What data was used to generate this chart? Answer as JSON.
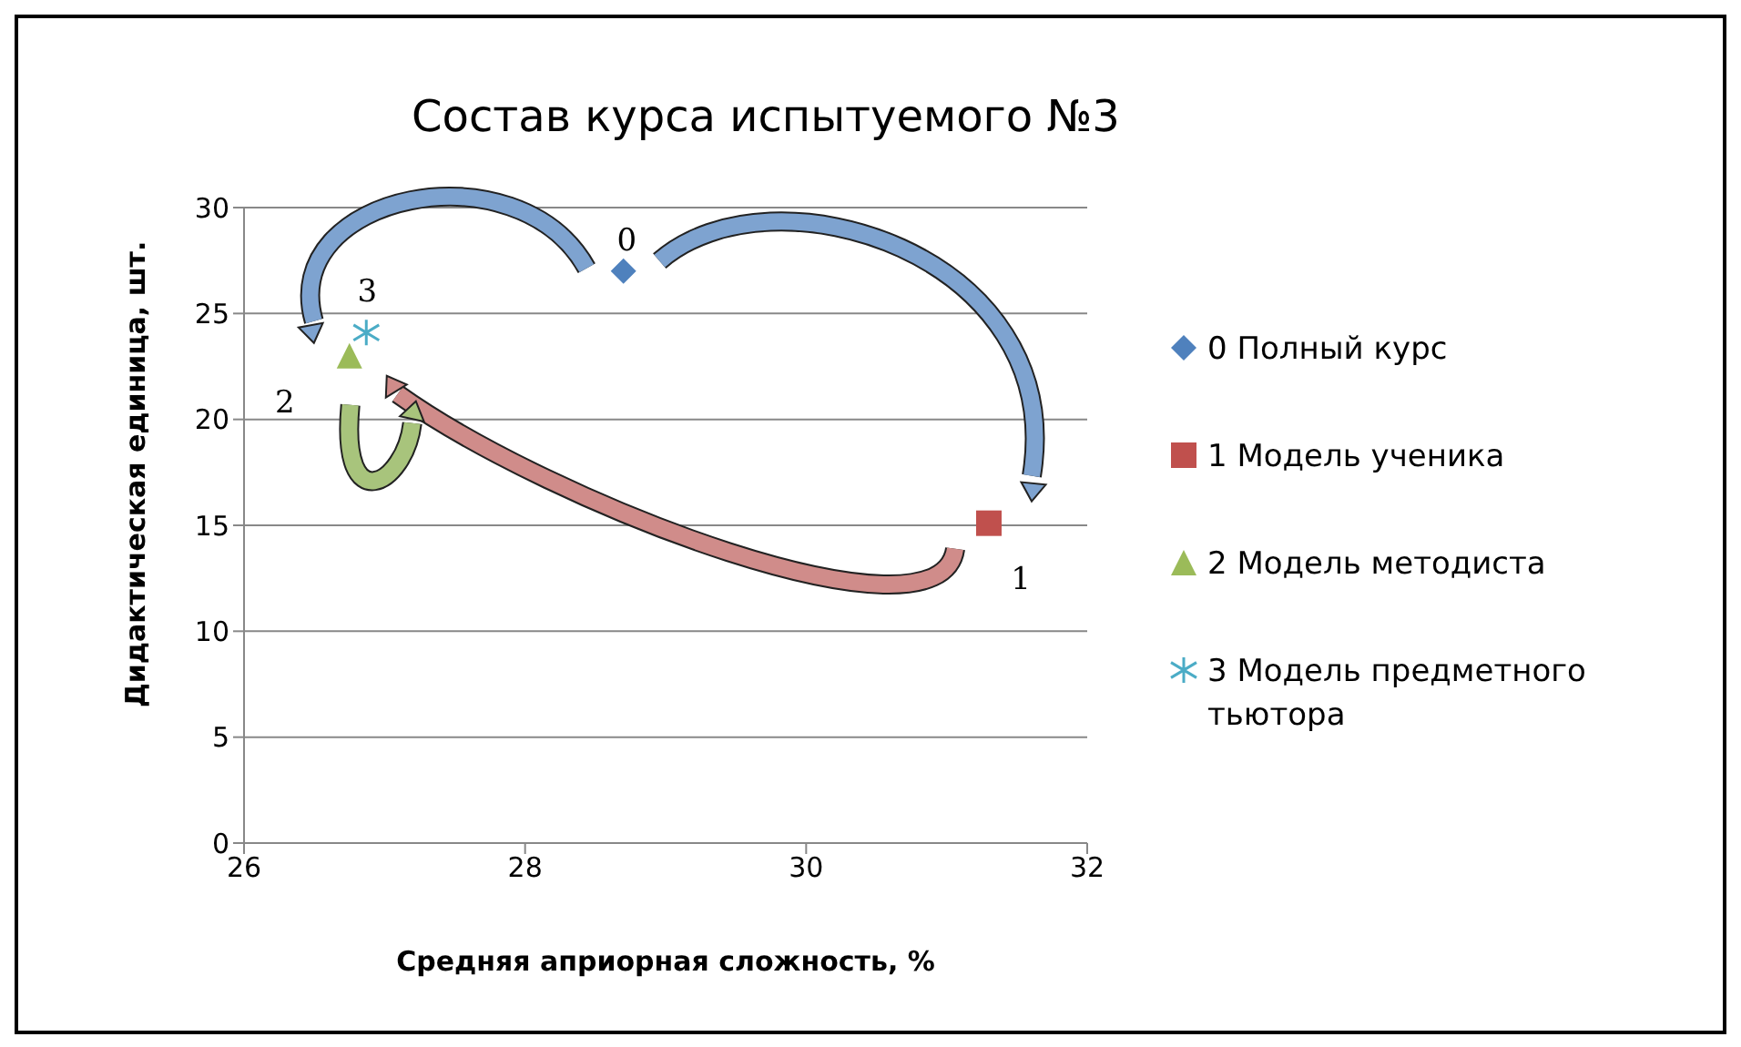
{
  "chart_data": {
    "type": "scatter",
    "title": "Состав курса испытуемого №3",
    "xlabel": "Средняя априорная  сложность, %",
    "ylabel": "Дидактическая   единица, шт.",
    "series": [
      {
        "name": "0 Полный курс",
        "color": "#4f81bd",
        "marker": "diamond",
        "x": [
          28.7
        ],
        "values": [
          27
        ]
      },
      {
        "name": "1 Модель ученика",
        "color": "#c0504d",
        "marker": "square",
        "x": [
          31.3
        ],
        "values": [
          15.1
        ]
      },
      {
        "name": "2 Модель методиста",
        "color": "#9bbb59",
        "marker": "triangle",
        "x": [
          26.75
        ],
        "values": [
          23
        ]
      },
      {
        "name": "3 Модель предметного тьютора",
        "color": "#4bacc6",
        "marker": "cross",
        "x": [
          26.87
        ],
        "values": [
          24.1
        ]
      }
    ],
    "annotations": [
      {
        "text": "0",
        "x": 28.7,
        "y": 27
      },
      {
        "text": "1",
        "x": 31.3,
        "y": 15.1
      },
      {
        "text": "2",
        "x": 26.75,
        "y": 23
      },
      {
        "text": "3",
        "x": 26.87,
        "y": 24.1
      }
    ],
    "xlim": [
      26,
      32
    ],
    "xticks": [
      26,
      28,
      30,
      32
    ],
    "ylim": [
      0,
      30
    ],
    "yticks": [
      0,
      5,
      10,
      15,
      20,
      25,
      30
    ],
    "grid": "y",
    "legend": "right"
  }
}
